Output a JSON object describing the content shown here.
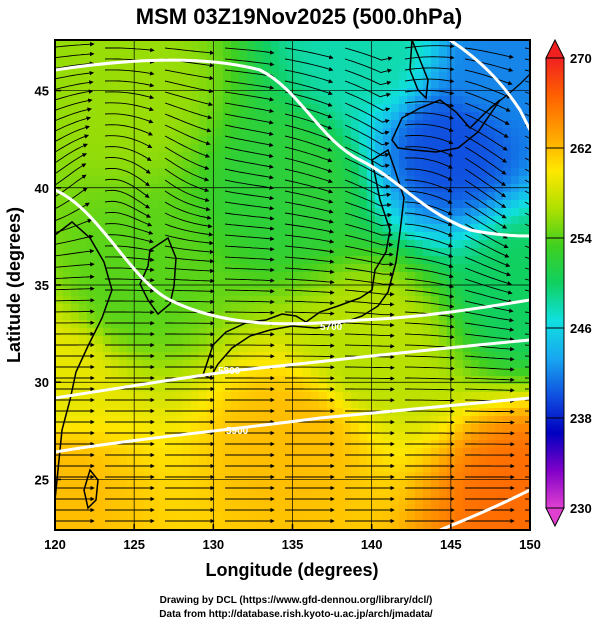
{
  "title": "MSM 03Z19Nov2025 (500.0hPa)",
  "credits": {
    "line1": "Drawing by DCL (https://www.gfd-dennou.org/library/dcl/)",
    "line2": "Data from http://database.rish.kyoto-u.ac.jp/arch/jmadata/"
  },
  "chart_data": {
    "type": "heatmap",
    "title": "MSM 03Z19Nov2025 (500.0hPa)",
    "xlabel": "Longitude (degrees)",
    "ylabel": "Latitude  (degrees)",
    "xlim": [
      120,
      150
    ],
    "ylim": [
      22.4,
      47.6
    ],
    "xticks": [
      120,
      125,
      130,
      135,
      140,
      145,
      150
    ],
    "yticks": [
      25,
      30,
      35,
      40,
      45
    ],
    "grid": true,
    "colorbar": {
      "min": 230,
      "max": 270,
      "ticks": [
        230,
        238,
        246,
        254,
        262,
        270
      ],
      "colors": [
        "#e040d0",
        "#8000c8",
        "#0000c0",
        "#1050e0",
        "#18a8f0",
        "#10e0e0",
        "#10d060",
        "#40d020",
        "#b0e000",
        "#ffe800",
        "#ffa000",
        "#ff6000",
        "#f02020"
      ]
    },
    "contour_labels": [
      "5700",
      "5800",
      "5900"
    ],
    "temperature_samples": [
      {
        "lon": 120,
        "lat": 25,
        "value": 262
      },
      {
        "lon": 150,
        "lat": 24,
        "value": 266
      },
      {
        "lon": 135,
        "lat": 27,
        "value": 262
      },
      {
        "lon": 120,
        "lat": 30,
        "value": 259
      },
      {
        "lon": 140,
        "lat": 32,
        "value": 257
      },
      {
        "lon": 125,
        "lat": 35,
        "value": 254
      },
      {
        "lon": 150,
        "lat": 35,
        "value": 250
      },
      {
        "lon": 135,
        "lat": 40,
        "value": 252
      },
      {
        "lon": 125,
        "lat": 45,
        "value": 256
      },
      {
        "lon": 145,
        "lat": 42,
        "value": 240
      },
      {
        "lon": 148,
        "lat": 46,
        "value": 242
      },
      {
        "lon": 140,
        "lat": 47,
        "value": 248
      }
    ],
    "wind": "mostly westerly; ridge over the Sea of Japan, trough east of Hokkaido"
  }
}
